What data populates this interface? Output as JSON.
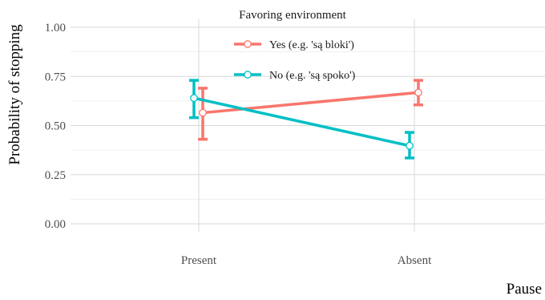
{
  "chart_data": {
    "type": "line",
    "x": [
      "Present",
      "Absent"
    ],
    "xlabel": "Pause",
    "ylabel": "Probability of stopping",
    "ylim": [
      0,
      1
    ],
    "yticks": [
      "0.00",
      "0.25",
      "0.50",
      "0.75",
      "1.00"
    ],
    "grid": true,
    "error_bars": true,
    "legend": {
      "title": "Favoring environment",
      "placement": "top-center"
    },
    "series": [
      {
        "name": "Yes (e.g. 'są bloki')",
        "color": "#f8766d",
        "values": [
          0.565,
          0.668
        ],
        "lower": [
          0.43,
          0.605
        ],
        "upper": [
          0.69,
          0.73
        ]
      },
      {
        "name": "No (e.g. 'są spoko')",
        "color": "#00bfc4",
        "values": [
          0.64,
          0.397
        ],
        "lower": [
          0.54,
          0.335
        ],
        "upper": [
          0.73,
          0.465
        ]
      }
    ]
  }
}
